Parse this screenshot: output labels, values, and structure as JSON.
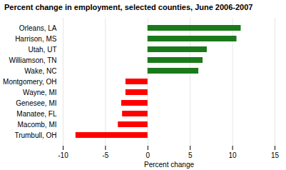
{
  "chart_data": {
    "type": "bar",
    "orientation": "horizontal",
    "title": "Percent change in employment, selected counties, June 2006-2007",
    "xlabel": "Percent change",
    "categories": [
      "Trumbull, OH",
      "Macomb, MI",
      "Manatee, FL",
      "Genesee, MI",
      "Wayne, MI",
      "Montgomery, OH",
      "Wake, NC",
      "Williamson, TN",
      "Utah, UT",
      "Harrison, MS",
      "Orleans, LA"
    ],
    "values": [
      -8.5,
      -3.5,
      -3.0,
      -3.1,
      -2.6,
      -2.6,
      6.0,
      6.5,
      7.0,
      10.5,
      11.0
    ],
    "colors": [
      "#ff0000",
      "#ff0000",
      "#ff0000",
      "#ff0000",
      "#ff0000",
      "#ff0000",
      "#1a7a1a",
      "#1a7a1a",
      "#1a7a1a",
      "#1a7a1a",
      "#1a7a1a"
    ],
    "xlim": [
      -10,
      15
    ],
    "xticks": [
      -10,
      -5,
      0,
      5,
      10,
      15
    ],
    "grid": true
  }
}
